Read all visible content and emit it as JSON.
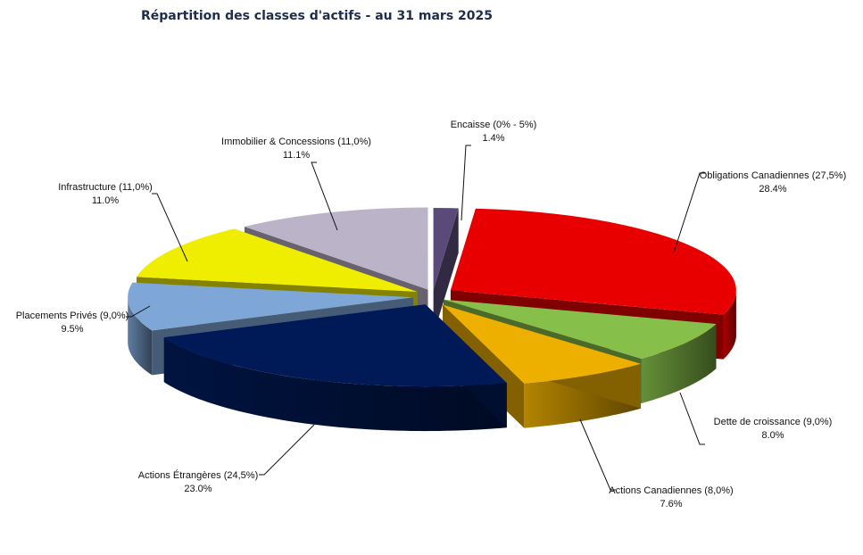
{
  "chart_data": {
    "type": "pie",
    "title": "Répartition des classes d'actifs - au 31 mars 2025",
    "slices": [
      {
        "label": "Encaisse (0% - 5%)",
        "value": 1.4,
        "value_label": "1.4%",
        "color": "#5a4a7a"
      },
      {
        "label": "Obligations Canadiennes (27,5%)",
        "value": 28.4,
        "value_label": "28.4%",
        "color": "#e80000"
      },
      {
        "label": "Dette de croissance (9,0%)",
        "value": 8.0,
        "value_label": "8.0%",
        "color": "#86c04a"
      },
      {
        "label": "Actions Canadiennes (8,0%)",
        "value": 7.6,
        "value_label": "7.6%",
        "color": "#eeb000"
      },
      {
        "label": "Actions Étrangères (24,5%)",
        "value": 23.0,
        "value_label": "23.0%",
        "color": "#001a57"
      },
      {
        "label": "Placements Privés (9,0%)",
        "value": 9.5,
        "value_label": "9.5%",
        "color": "#7ea6d6"
      },
      {
        "label": "Infrastructure (11,0%)",
        "value": 11.0,
        "value_label": "11.0%",
        "color": "#f0ee00"
      },
      {
        "label": "Immobilier & Concessions (11,0%)",
        "value": 11.1,
        "value_label": "11.1%",
        "color": "#bbb3c8"
      }
    ]
  }
}
